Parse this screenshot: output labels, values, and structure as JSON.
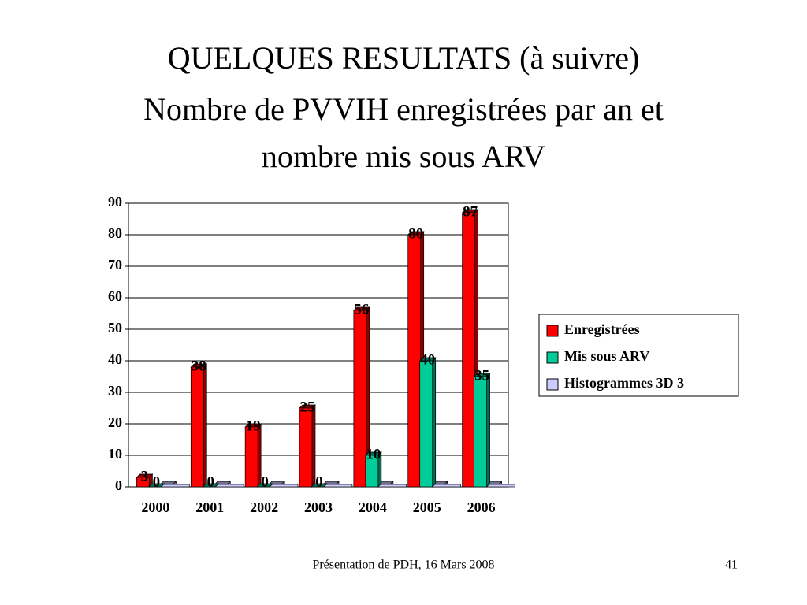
{
  "title": "QUELQUES RESULTATS (à suivre)",
  "subtitle": [
    "Nombre de PVVIH enregistrées par an et",
    "nombre mis sous ARV"
  ],
  "chart_data": {
    "type": "bar",
    "categories": [
      "2000",
      "2001",
      "2002",
      "2003",
      "2004",
      "2005",
      "2006"
    ],
    "series": [
      {
        "name": "Enregistrées",
        "color": "#ff0000",
        "values": [
          3,
          38,
          19,
          25,
          56,
          80,
          87
        ]
      },
      {
        "name": "Mis sous ARV",
        "color": "#00cc99",
        "values": [
          0,
          0,
          0,
          0,
          10,
          40,
          35
        ]
      },
      {
        "name": "Histogrammes 3D 3",
        "color": "#ccccff",
        "values": [
          0,
          0,
          0,
          0,
          0,
          0,
          0
        ]
      }
    ],
    "ylim": [
      0,
      90
    ],
    "yticks": [
      0,
      10,
      20,
      30,
      40,
      50,
      60,
      70,
      80,
      90
    ],
    "grid": true,
    "data_labels": [
      true,
      true,
      false
    ],
    "legend": "right"
  },
  "footer": {
    "text": "Présentation de PDH, 16 Mars 2008",
    "page": "41"
  }
}
